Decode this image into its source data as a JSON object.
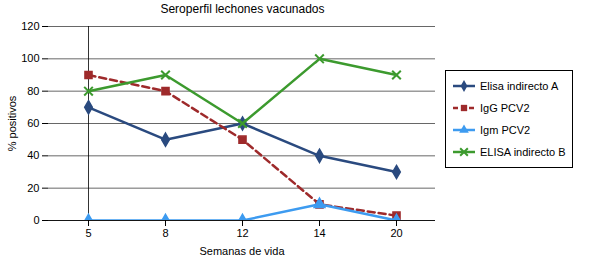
{
  "chart_data": {
    "type": "line",
    "title": "Seroperfil lechones vacunados",
    "x_label": "Semanas de vida",
    "y_label": "% positivos",
    "categories": [
      "5",
      "8",
      "12",
      "14",
      "20"
    ],
    "ylim": [
      0,
      120
    ],
    "yticks": [
      0,
      20,
      40,
      60,
      80,
      100,
      120
    ],
    "grid": true,
    "legend": "right",
    "series": [
      {
        "name": "Elisa indirecto A",
        "color": "#2A4A7F",
        "marker": "diamond",
        "line_style": "solid",
        "values": [
          70,
          50,
          60,
          40,
          30
        ]
      },
      {
        "name": "IgG PCV2",
        "color": "#9E2A2B",
        "marker": "square",
        "line_style": "dashed",
        "values": [
          90,
          80,
          50,
          10,
          3
        ]
      },
      {
        "name": "Igm PCV2",
        "color": "#3D9BF0",
        "marker": "triangle",
        "line_style": "solid",
        "values": [
          0,
          0,
          0,
          10,
          0
        ]
      },
      {
        "name": "ELISA indirecto B",
        "color": "#3C9A2E",
        "marker": "x",
        "line_style": "solid",
        "values": [
          80,
          90,
          60,
          100,
          90
        ]
      }
    ]
  }
}
